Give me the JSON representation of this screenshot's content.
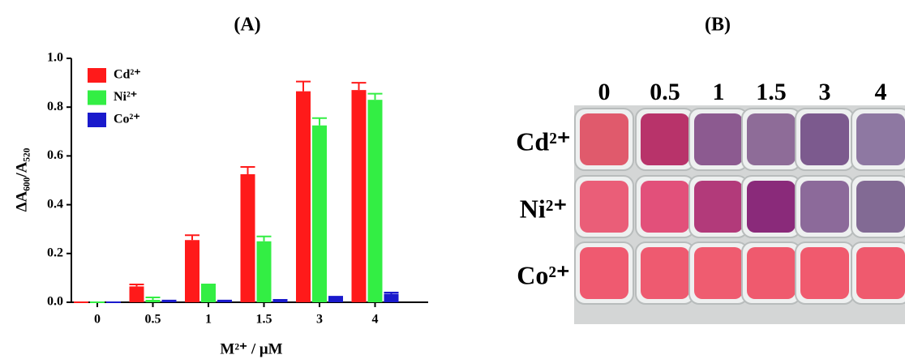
{
  "chart_data": [
    {
      "type": "bar",
      "title": "(A)",
      "ylabel": "ΔA₆₀₀/A₅₂₀",
      "xlabel": "M²⁺ / μM",
      "categories": [
        "0",
        "0.5",
        "1",
        "1.5",
        "3",
        "4"
      ],
      "series": [
        {
          "name": "Cd²⁺",
          "color": "#ff1a1a",
          "values": [
            0,
            0.065,
            0.255,
            0.525,
            0.865,
            0.87
          ],
          "errors": [
            0,
            0.008,
            0.02,
            0.03,
            0.04,
            0.03
          ]
        },
        {
          "name": "Ni²⁺",
          "color": "#33ee44",
          "values": [
            0,
            0.01,
            0.07,
            0.25,
            0.725,
            0.83
          ],
          "errors": [
            0,
            0.01,
            0.003,
            0.02,
            0.03,
            0.025
          ]
        },
        {
          "name": "Co²⁺",
          "color": "#1a1acc",
          "values": [
            0,
            0.005,
            0.005,
            0.008,
            0.02,
            0.035
          ],
          "errors": [
            0,
            0.002,
            0.002,
            0.002,
            0.003,
            0.005
          ]
        }
      ],
      "ylim": [
        0,
        1
      ],
      "yticks": [
        {
          "value": 0,
          "label": "0.0"
        },
        {
          "value": 0.2,
          "label": "0.2"
        },
        {
          "value": 0.4,
          "label": "0.4"
        },
        {
          "value": 0.6,
          "label": "0.6"
        },
        {
          "value": 0.8,
          "label": "0.8"
        },
        {
          "value": 1,
          "label": "1.0"
        }
      ],
      "legend": "upper-left"
    },
    {
      "type": "plate",
      "title": "(B)",
      "columns": [
        "0",
        "0.5",
        "1",
        "1.5",
        "3",
        "4"
      ],
      "rows": [
        {
          "label": "Cd²⁺",
          "colors": [
            "#e05a6c",
            "#b8336a",
            "#8c5a90",
            "#8e6c98",
            "#7c5a8e",
            "#8e78a2"
          ]
        },
        {
          "label": "Ni²⁺",
          "colors": [
            "#ea5e78",
            "#e2507a",
            "#b23a7a",
            "#8a2a7a",
            "#8c6a9a",
            "#826a94"
          ]
        },
        {
          "label": "Co²⁺",
          "colors": [
            "#ef5a70",
            "#ee5a70",
            "#ef5c70",
            "#ef5a6e",
            "#f05a6e",
            "#ef5a6e"
          ]
        }
      ]
    }
  ]
}
